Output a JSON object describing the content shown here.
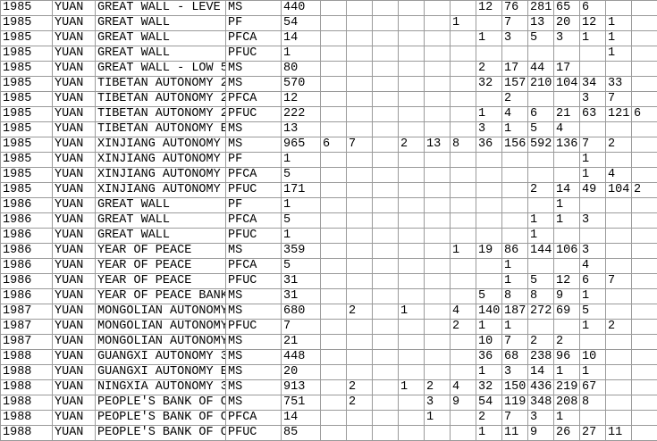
{
  "rows": [
    [
      "1985",
      "YUAN",
      "GREAT WALL - LEVE",
      "MS",
      440,
      null,
      null,
      null,
      null,
      null,
      null,
      12,
      76,
      281,
      65,
      6,
      null,
      null
    ],
    [
      "1985",
      "YUAN",
      "GREAT WALL",
      "PF",
      54,
      null,
      null,
      null,
      null,
      null,
      1,
      null,
      7,
      13,
      20,
      12,
      1,
      null
    ],
    [
      "1985",
      "YUAN",
      "GREAT WALL",
      "PFCA",
      14,
      null,
      null,
      null,
      null,
      null,
      null,
      1,
      3,
      5,
      3,
      1,
      1,
      null
    ],
    [
      "1985",
      "YUAN",
      "GREAT WALL",
      "PFUC",
      1,
      null,
      null,
      null,
      null,
      null,
      null,
      null,
      null,
      null,
      null,
      null,
      1,
      null
    ],
    [
      "1985",
      "YUAN",
      "GREAT WALL - LOW 5",
      "MS",
      80,
      null,
      null,
      null,
      null,
      null,
      null,
      2,
      17,
      44,
      17,
      null,
      null,
      null
    ],
    [
      "1985",
      "YUAN",
      "TIBETAN AUTONOMY 2",
      "MS",
      570,
      null,
      null,
      null,
      null,
      null,
      null,
      32,
      157,
      210,
      104,
      34,
      33,
      null
    ],
    [
      "1985",
      "YUAN",
      "TIBETAN AUTONOMY 2",
      "PFCA",
      12,
      null,
      null,
      null,
      null,
      null,
      null,
      null,
      2,
      null,
      null,
      3,
      7,
      null
    ],
    [
      "1985",
      "YUAN",
      "TIBETAN AUTONOMY 2",
      "PFUC",
      222,
      null,
      null,
      null,
      null,
      null,
      null,
      1,
      4,
      6,
      21,
      63,
      121,
      6
    ],
    [
      "1985",
      "YUAN",
      "TIBETAN AUTONOMY E",
      "MS",
      13,
      null,
      null,
      null,
      null,
      null,
      null,
      3,
      1,
      5,
      4,
      null,
      null,
      null
    ],
    [
      "1985",
      "YUAN",
      "XINJIANG AUTONOMY",
      "MS",
      965,
      6,
      7,
      null,
      2,
      13,
      8,
      36,
      156,
      592,
      136,
      7,
      2,
      null
    ],
    [
      "1985",
      "YUAN",
      "XINJIANG AUTONOMY",
      "PF",
      1,
      null,
      null,
      null,
      null,
      null,
      null,
      null,
      null,
      null,
      null,
      1,
      null,
      null
    ],
    [
      "1985",
      "YUAN",
      "XINJIANG AUTONOMY",
      "PFCA",
      5,
      null,
      null,
      null,
      null,
      null,
      null,
      null,
      null,
      null,
      null,
      1,
      4,
      null
    ],
    [
      "1985",
      "YUAN",
      "XINJIANG AUTONOMY",
      "PFUC",
      171,
      null,
      null,
      null,
      null,
      null,
      null,
      null,
      null,
      2,
      14,
      49,
      104,
      2
    ],
    [
      "1986",
      "YUAN",
      "GREAT WALL",
      "PF",
      1,
      null,
      null,
      null,
      null,
      null,
      null,
      null,
      null,
      null,
      1,
      null,
      null,
      null
    ],
    [
      "1986",
      "YUAN",
      "GREAT WALL",
      "PFCA",
      5,
      null,
      null,
      null,
      null,
      null,
      null,
      null,
      null,
      1,
      1,
      3,
      null,
      null
    ],
    [
      "1986",
      "YUAN",
      "GREAT WALL",
      "PFUC",
      1,
      null,
      null,
      null,
      null,
      null,
      null,
      null,
      null,
      1,
      null,
      null,
      null,
      null
    ],
    [
      "1986",
      "YUAN",
      "YEAR OF PEACE",
      "MS",
      359,
      null,
      null,
      null,
      null,
      null,
      1,
      19,
      86,
      144,
      106,
      3,
      null,
      null
    ],
    [
      "1986",
      "YUAN",
      "YEAR OF PEACE",
      "PFCA",
      5,
      null,
      null,
      null,
      null,
      null,
      null,
      null,
      1,
      null,
      null,
      4,
      null,
      null
    ],
    [
      "1986",
      "YUAN",
      "YEAR OF PEACE",
      "PFUC",
      31,
      null,
      null,
      null,
      null,
      null,
      null,
      null,
      1,
      5,
      12,
      6,
      7,
      null
    ],
    [
      "1986",
      "YUAN",
      "YEAR OF PEACE BANK",
      "MS",
      31,
      null,
      null,
      null,
      null,
      null,
      null,
      5,
      8,
      8,
      9,
      1,
      null,
      null
    ],
    [
      "1987",
      "YUAN",
      "MONGOLIAN AUTONOMY",
      "MS",
      680,
      null,
      2,
      null,
      1,
      null,
      4,
      140,
      187,
      272,
      69,
      5,
      null,
      null
    ],
    [
      "1987",
      "YUAN",
      "MONGOLIAN AUTONOMY",
      "PFUC",
      7,
      null,
      null,
      null,
      null,
      null,
      2,
      1,
      1,
      null,
      null,
      1,
      2,
      null
    ],
    [
      "1987",
      "YUAN",
      "MONGOLIAN AUTONOMY",
      "MS",
      21,
      null,
      null,
      null,
      null,
      null,
      null,
      10,
      7,
      2,
      2,
      null,
      null,
      null
    ],
    [
      "1988",
      "YUAN",
      "GUANGXI AUTONOMY 3",
      "MS",
      448,
      null,
      null,
      null,
      null,
      null,
      null,
      36,
      68,
      238,
      96,
      10,
      null,
      null
    ],
    [
      "1988",
      "YUAN",
      "GUANGXI AUTONOMY E",
      "MS",
      20,
      null,
      null,
      null,
      null,
      null,
      null,
      1,
      3,
      14,
      1,
      1,
      null,
      null
    ],
    [
      "1988",
      "YUAN",
      "NINGXIA AUTONOMY 3",
      "MS",
      913,
      null,
      2,
      null,
      1,
      2,
      4,
      32,
      150,
      436,
      219,
      67,
      null,
      null
    ],
    [
      "1988",
      "YUAN",
      "PEOPLE'S BANK OF C",
      "MS",
      751,
      null,
      2,
      null,
      null,
      3,
      9,
      54,
      119,
      348,
      208,
      8,
      null,
      null
    ],
    [
      "1988",
      "YUAN",
      "PEOPLE'S BANK OF C",
      "PFCA",
      14,
      null,
      null,
      null,
      null,
      1,
      null,
      2,
      7,
      3,
      1,
      null,
      null,
      null
    ],
    [
      "1988",
      "YUAN",
      "PEOPLE'S BANK OF C",
      "PFUC",
      85,
      null,
      null,
      null,
      null,
      null,
      null,
      1,
      11,
      9,
      26,
      27,
      11,
      null
    ]
  ]
}
